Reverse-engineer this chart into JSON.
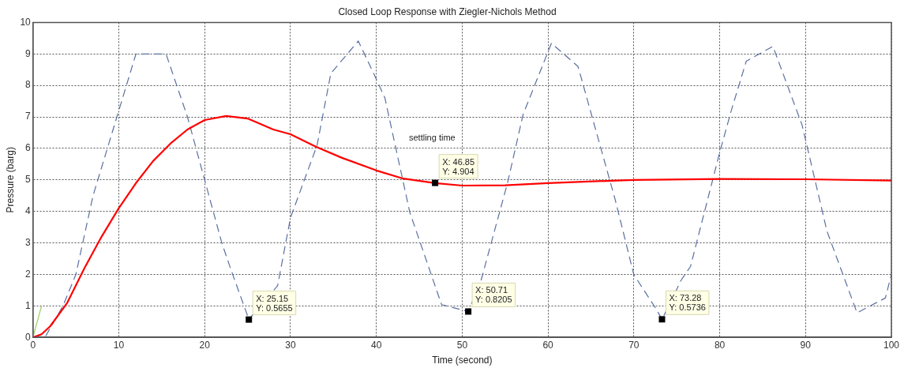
{
  "chart_data": {
    "type": "line",
    "title": "Closed Loop Response with Ziegler-Nichols Method",
    "xlabel": "Time (second)",
    "ylabel": "Pressure (barg)",
    "xlim": [
      0,
      100
    ],
    "ylim": [
      0,
      10
    ],
    "xticks": [
      0,
      10,
      20,
      30,
      40,
      50,
      60,
      70,
      80,
      90,
      100
    ],
    "yticks": [
      0,
      1,
      2,
      3,
      4,
      5,
      6,
      7,
      8,
      9,
      10
    ],
    "grid": true,
    "legend": false,
    "marker": "none",
    "series": [
      {
        "color": "#ff0000",
        "line_style": "solid",
        "x": [
          0,
          1,
          2,
          4,
          6,
          8,
          10,
          12,
          14,
          16,
          18,
          20,
          22.5,
          25,
          28,
          30,
          33,
          36,
          40,
          43,
          46.85,
          50,
          55,
          60,
          70,
          80,
          90,
          100
        ],
        "values": [
          0,
          0.1,
          0.35,
          1.1,
          2.2,
          3.2,
          4.1,
          4.9,
          5.6,
          6.15,
          6.6,
          6.9,
          7.03,
          6.95,
          6.6,
          6.45,
          6.05,
          5.7,
          5.3,
          5.05,
          4.9,
          4.82,
          4.83,
          4.9,
          5.0,
          5.03,
          5.02,
          4.98
        ]
      },
      {
        "color": "#5a6fa0",
        "line_style": "dashed",
        "x": [
          0,
          1.5,
          3.5,
          5,
          7,
          10,
          12,
          15.5,
          18,
          20,
          22,
          23,
          25.15,
          28.5,
          30,
          33.1,
          34.7,
          37.9,
          40,
          41,
          43.9,
          47.6,
          50.71,
          52.2,
          55.3,
          57.1,
          60.4,
          63.5,
          67.8,
          70,
          72.6,
          73.28,
          75.5,
          76.6,
          80,
          81.4,
          83.1,
          86.2,
          89.6,
          92.5,
          96,
          99.3,
          100
        ],
        "values": [
          0,
          0.05,
          1,
          2,
          4.5,
          7.2,
          9,
          9,
          7,
          5,
          3,
          2.2,
          0.57,
          1.64,
          3.8,
          6.1,
          8.38,
          9.41,
          8.2,
          7.6,
          3.97,
          1.04,
          0.82,
          1.81,
          4.92,
          7.08,
          9.34,
          8.6,
          4.4,
          1.99,
          0.9,
          0.57,
          1.81,
          2.25,
          5.87,
          7.25,
          8.77,
          9.24,
          6.74,
          3.37,
          0.78,
          1.25,
          1.99
        ]
      },
      {
        "color": "#99cc66",
        "line_style": "solid",
        "x": [
          0,
          1
        ],
        "values": [
          0,
          1
        ]
      }
    ],
    "annotations": [
      "settling time",
      {
        "text": "X: 25.15\nY: 0.5655",
        "x": 25.15,
        "y": 0.5655
      },
      {
        "text": "X: 46.85\nY: 4.904",
        "x": 46.85,
        "y": 4.904
      },
      {
        "text": "X: 50.71\nY: 0.8205",
        "x": 50.71,
        "y": 0.8205
      },
      {
        "text": "X: 73.28\nY: 0.5736",
        "x": 73.28,
        "y": 0.5736
      }
    ]
  }
}
